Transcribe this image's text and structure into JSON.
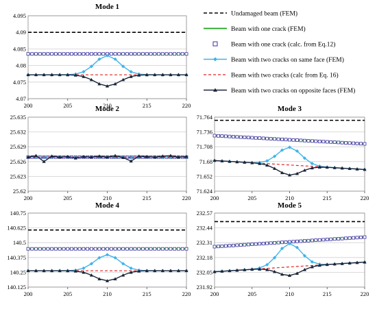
{
  "colors": {
    "undamaged": "#000000",
    "one_crack_fem": "#1aa31a",
    "one_crack_calc": "#3a2fa0",
    "two_same_fem": "#3fb3ea",
    "two_calc": "#e02020",
    "two_opp_fem": "#1a2438",
    "grid": "#d0d0d0"
  },
  "legend": {
    "entries": [
      {
        "key": "undamaged",
        "label": "Undamaged beam (FEM)",
        "style": "dashed-black"
      },
      {
        "key": "one_crack_fem",
        "label": "Beam with one crack (FEM)",
        "style": "solid-green"
      },
      {
        "key": "one_crack_calc",
        "label": "Beam with one crack (calc. from Eq.12)",
        "style": "open-square"
      },
      {
        "key": "two_same_fem",
        "label": "Beam with two cracks on same face (FEM)",
        "style": "cyan-diamond-line"
      },
      {
        "key": "two_calc",
        "label": "Beam with two cracks (calc from Eq. 16)",
        "style": "dashed-red"
      },
      {
        "key": "two_opp_fem",
        "label": "Beam with two cracks on opposite faces (FEM)",
        "style": "triangle-line"
      }
    ]
  },
  "chart_data": [
    {
      "type": "line",
      "title": "Mode 1",
      "x_ticks": [
        "200",
        "205",
        "210",
        "215",
        "220"
      ],
      "y_ticks": [
        "4.07",
        "4.075",
        "4.08",
        "4.085",
        "4.09",
        "4.095"
      ],
      "xlim": [
        200,
        220
      ],
      "ylim": [
        4.07,
        4.095
      ],
      "grid": "horizontal",
      "series": {
        "undamaged": 4.09,
        "one_crack": 4.0835,
        "one_crack_slope": 0.0,
        "two_base": 4.0772,
        "two_base_slope": 0.0,
        "same_peak": 0.0058,
        "opp_dip": -0.0034,
        "calc_bump": 0.0,
        "width": 2.2
      }
    },
    {
      "type": "line",
      "title": "Mode 2",
      "x_ticks": [
        "200",
        "205",
        "210",
        "215",
        "220"
      ],
      "y_ticks": [
        "25.62",
        "25.623",
        "25.626",
        "25.629",
        "25.632",
        "25.635"
      ],
      "xlim": [
        200,
        220
      ],
      "ylim": [
        25.62,
        25.635
      ],
      "grid": "horizontal",
      "series": {
        "undamaged": 25.6268,
        "one_crack": 25.6269,
        "one_crack_slope": 0.0,
        "two_base": 25.6269,
        "two_base_slope": 0.0,
        "same_peak": 0.0,
        "opp_dip": 0.0,
        "calc_bump": 0.0,
        "width": 2.2,
        "noise": [
          0,
          0.0003,
          -0.0009,
          0.0002,
          0,
          0.0001,
          -0.0002,
          0.0001,
          0,
          0.0002,
          0,
          0.0003,
          -0.0001,
          -0.0008,
          0.0002,
          0.0001,
          0,
          0.0002,
          0.0003,
          0,
          0.0001
        ]
      }
    },
    {
      "type": "line",
      "title": "Mode 3",
      "x_ticks": [
        "200",
        "205",
        "210",
        "215",
        "220"
      ],
      "y_ticks": [
        "71.624",
        "71.652",
        "71.68",
        "71.708",
        "71.736",
        "71.764"
      ],
      "xlim": [
        200,
        220
      ],
      "ylim": [
        71.624,
        71.764
      ],
      "grid": "horizontal",
      "series": {
        "undamaged": 71.758,
        "one_crack": 71.729,
        "one_crack_slope": -0.00078,
        "two_base": 71.682,
        "two_base_slope": -0.00085,
        "same_peak": 0.0335,
        "opp_dip": -0.019,
        "calc_bump": 0.0,
        "width": 2.2
      }
    },
    {
      "type": "line",
      "title": "Mode 4",
      "x_ticks": [
        "200",
        "205",
        "210",
        "215",
        "220"
      ],
      "y_ticks": [
        "140.125",
        "140.25",
        "140.375",
        "140.5",
        "140.625",
        "140.75"
      ],
      "xlim": [
        200,
        220
      ],
      "ylim": [
        140.125,
        140.75
      ],
      "grid": "horizontal",
      "series": {
        "undamaged": 140.607,
        "one_crack": 140.448,
        "one_crack_slope": 0.0,
        "two_base": 140.263,
        "two_base_slope": 0.0,
        "same_peak": 0.135,
        "opp_dip": -0.085,
        "calc_bump": 0.0,
        "width": 2.2
      }
    },
    {
      "type": "line",
      "title": "Mode 5",
      "x_ticks": [
        "200",
        "205",
        "210",
        "215",
        "220"
      ],
      "y_ticks": [
        "231.92",
        "232.05",
        "232.18",
        "232.31",
        "232.44",
        "232.57"
      ],
      "xlim": [
        200,
        220
      ],
      "ylim": [
        231.92,
        232.57
      ],
      "grid": "horizontal",
      "series": {
        "undamaged": 232.495,
        "one_crack": 232.275,
        "one_crack_slope": 0.0042,
        "two_base": 232.055,
        "two_base_slope": 0.0042,
        "same_peak": 0.205,
        "opp_dip": -0.075,
        "calc_bump": 0.0,
        "width": 2.2
      }
    }
  ]
}
